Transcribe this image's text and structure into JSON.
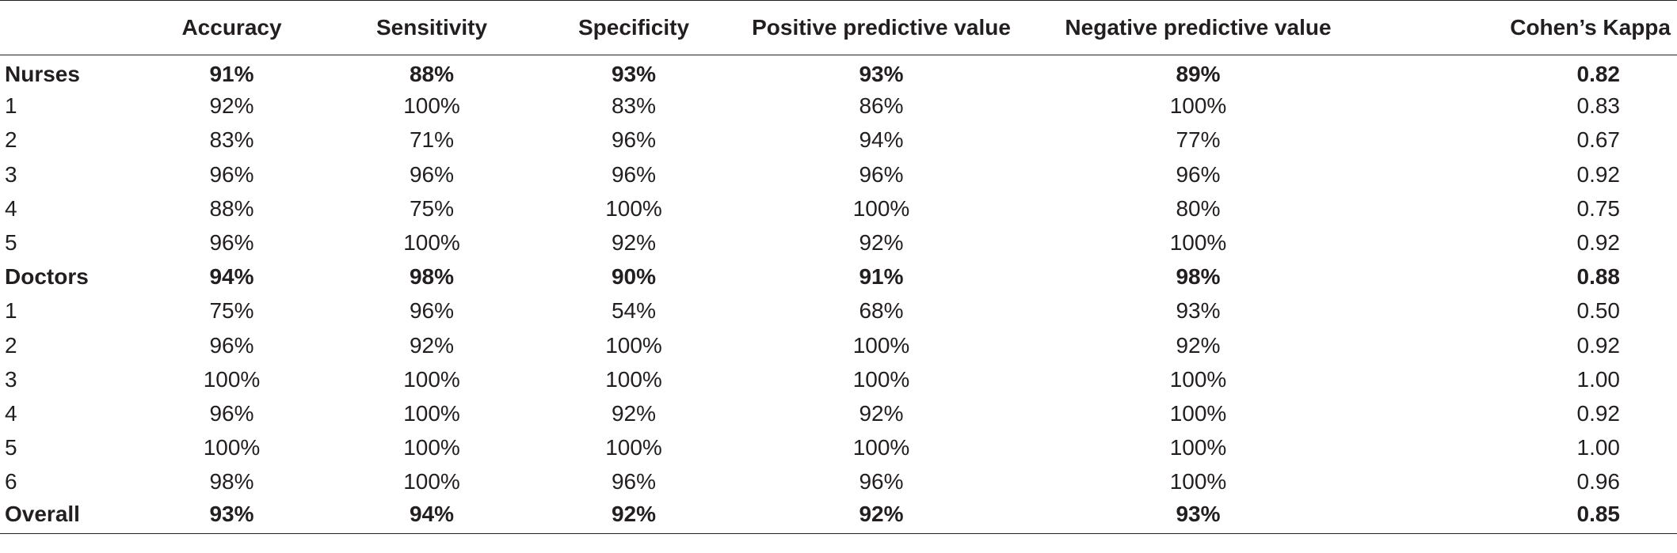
{
  "table": {
    "headers": [
      "",
      "Accuracy",
      "Sensitivity",
      "Specificity",
      "Positive predictive value",
      "Negative predictive value",
      "Cohen’s Kappa"
    ],
    "rows": [
      {
        "label": "Nurses",
        "bold": true,
        "values": [
          "91%",
          "88%",
          "93%",
          "93%",
          "89%",
          "0.82"
        ]
      },
      {
        "label": "1",
        "bold": false,
        "values": [
          "92%",
          "100%",
          "83%",
          "86%",
          "100%",
          "0.83"
        ]
      },
      {
        "label": "2",
        "bold": false,
        "values": [
          "83%",
          "71%",
          "96%",
          "94%",
          "77%",
          "0.67"
        ]
      },
      {
        "label": "3",
        "bold": false,
        "values": [
          "96%",
          "96%",
          "96%",
          "96%",
          "96%",
          "0.92"
        ]
      },
      {
        "label": "4",
        "bold": false,
        "values": [
          "88%",
          "75%",
          "100%",
          "100%",
          "80%",
          "0.75"
        ]
      },
      {
        "label": "5",
        "bold": false,
        "values": [
          "96%",
          "100%",
          "92%",
          "92%",
          "100%",
          "0.92"
        ]
      },
      {
        "label": "Doctors",
        "bold": true,
        "values": [
          "94%",
          "98%",
          "90%",
          "91%",
          "98%",
          "0.88"
        ]
      },
      {
        "label": "1",
        "bold": false,
        "values": [
          "75%",
          "96%",
          "54%",
          "68%",
          "93%",
          "0.50"
        ]
      },
      {
        "label": "2",
        "bold": false,
        "values": [
          "96%",
          "92%",
          "100%",
          "100%",
          "92%",
          "0.92"
        ]
      },
      {
        "label": "3",
        "bold": false,
        "values": [
          "100%",
          "100%",
          "100%",
          "100%",
          "100%",
          "1.00"
        ]
      },
      {
        "label": "4",
        "bold": false,
        "values": [
          "96%",
          "100%",
          "92%",
          "92%",
          "100%",
          "0.92"
        ]
      },
      {
        "label": "5",
        "bold": false,
        "values": [
          "100%",
          "100%",
          "100%",
          "100%",
          "100%",
          "1.00"
        ]
      },
      {
        "label": "6",
        "bold": false,
        "values": [
          "98%",
          "100%",
          "96%",
          "96%",
          "100%",
          "0.96"
        ]
      },
      {
        "label": "Overall",
        "bold": true,
        "values": [
          "93%",
          "94%",
          "92%",
          "92%",
          "93%",
          "0.85"
        ]
      }
    ]
  }
}
